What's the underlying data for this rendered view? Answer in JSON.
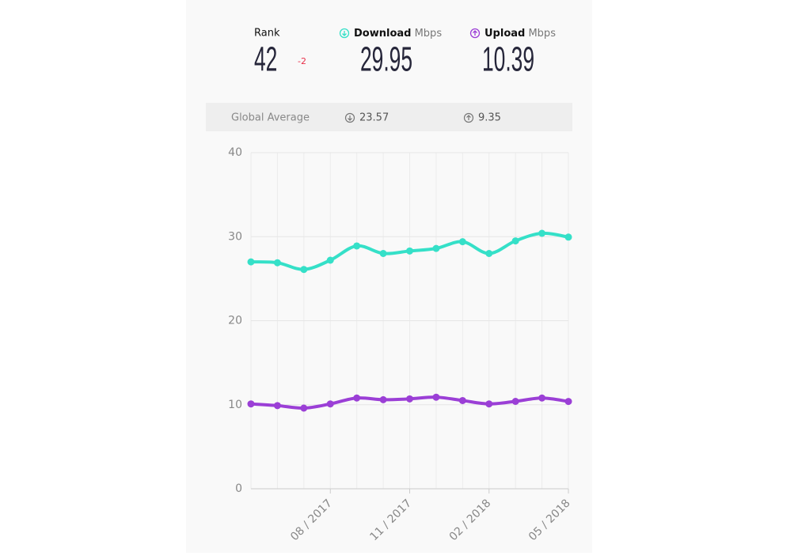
{
  "header": {
    "rank_label": "Rank",
    "rank": 42,
    "rank_change": -2,
    "download_label": "Download",
    "upload_label": "Upload",
    "unit": "Mbps",
    "download": 29.95,
    "upload": 10.39
  },
  "global": {
    "label": "Global Average",
    "download": 23.57,
    "upload": 9.35
  },
  "chart_data": {
    "type": "line",
    "categories": [
      null,
      null,
      null,
      "08 / 2017",
      null,
      null,
      "11 / 2017",
      null,
      null,
      "02 / 2018",
      null,
      null,
      "05 / 2018"
    ],
    "series": [
      {
        "name": "Download",
        "color": "#35e0c8",
        "values": [
          27.0,
          26.9,
          26.1,
          27.2,
          28.9,
          28.0,
          28.3,
          28.6,
          29.4,
          28.0,
          29.5,
          30.4,
          29.95
        ]
      },
      {
        "name": "Upload",
        "color": "#9b3fd6",
        "values": [
          10.1,
          9.9,
          9.6,
          10.1,
          10.8,
          10.6,
          10.7,
          10.9,
          10.5,
          10.1,
          10.4,
          10.8,
          10.39
        ]
      }
    ],
    "ylim": [
      0,
      40
    ],
    "yticks": [
      0,
      10,
      20,
      30,
      40
    ],
    "grid": true
  }
}
